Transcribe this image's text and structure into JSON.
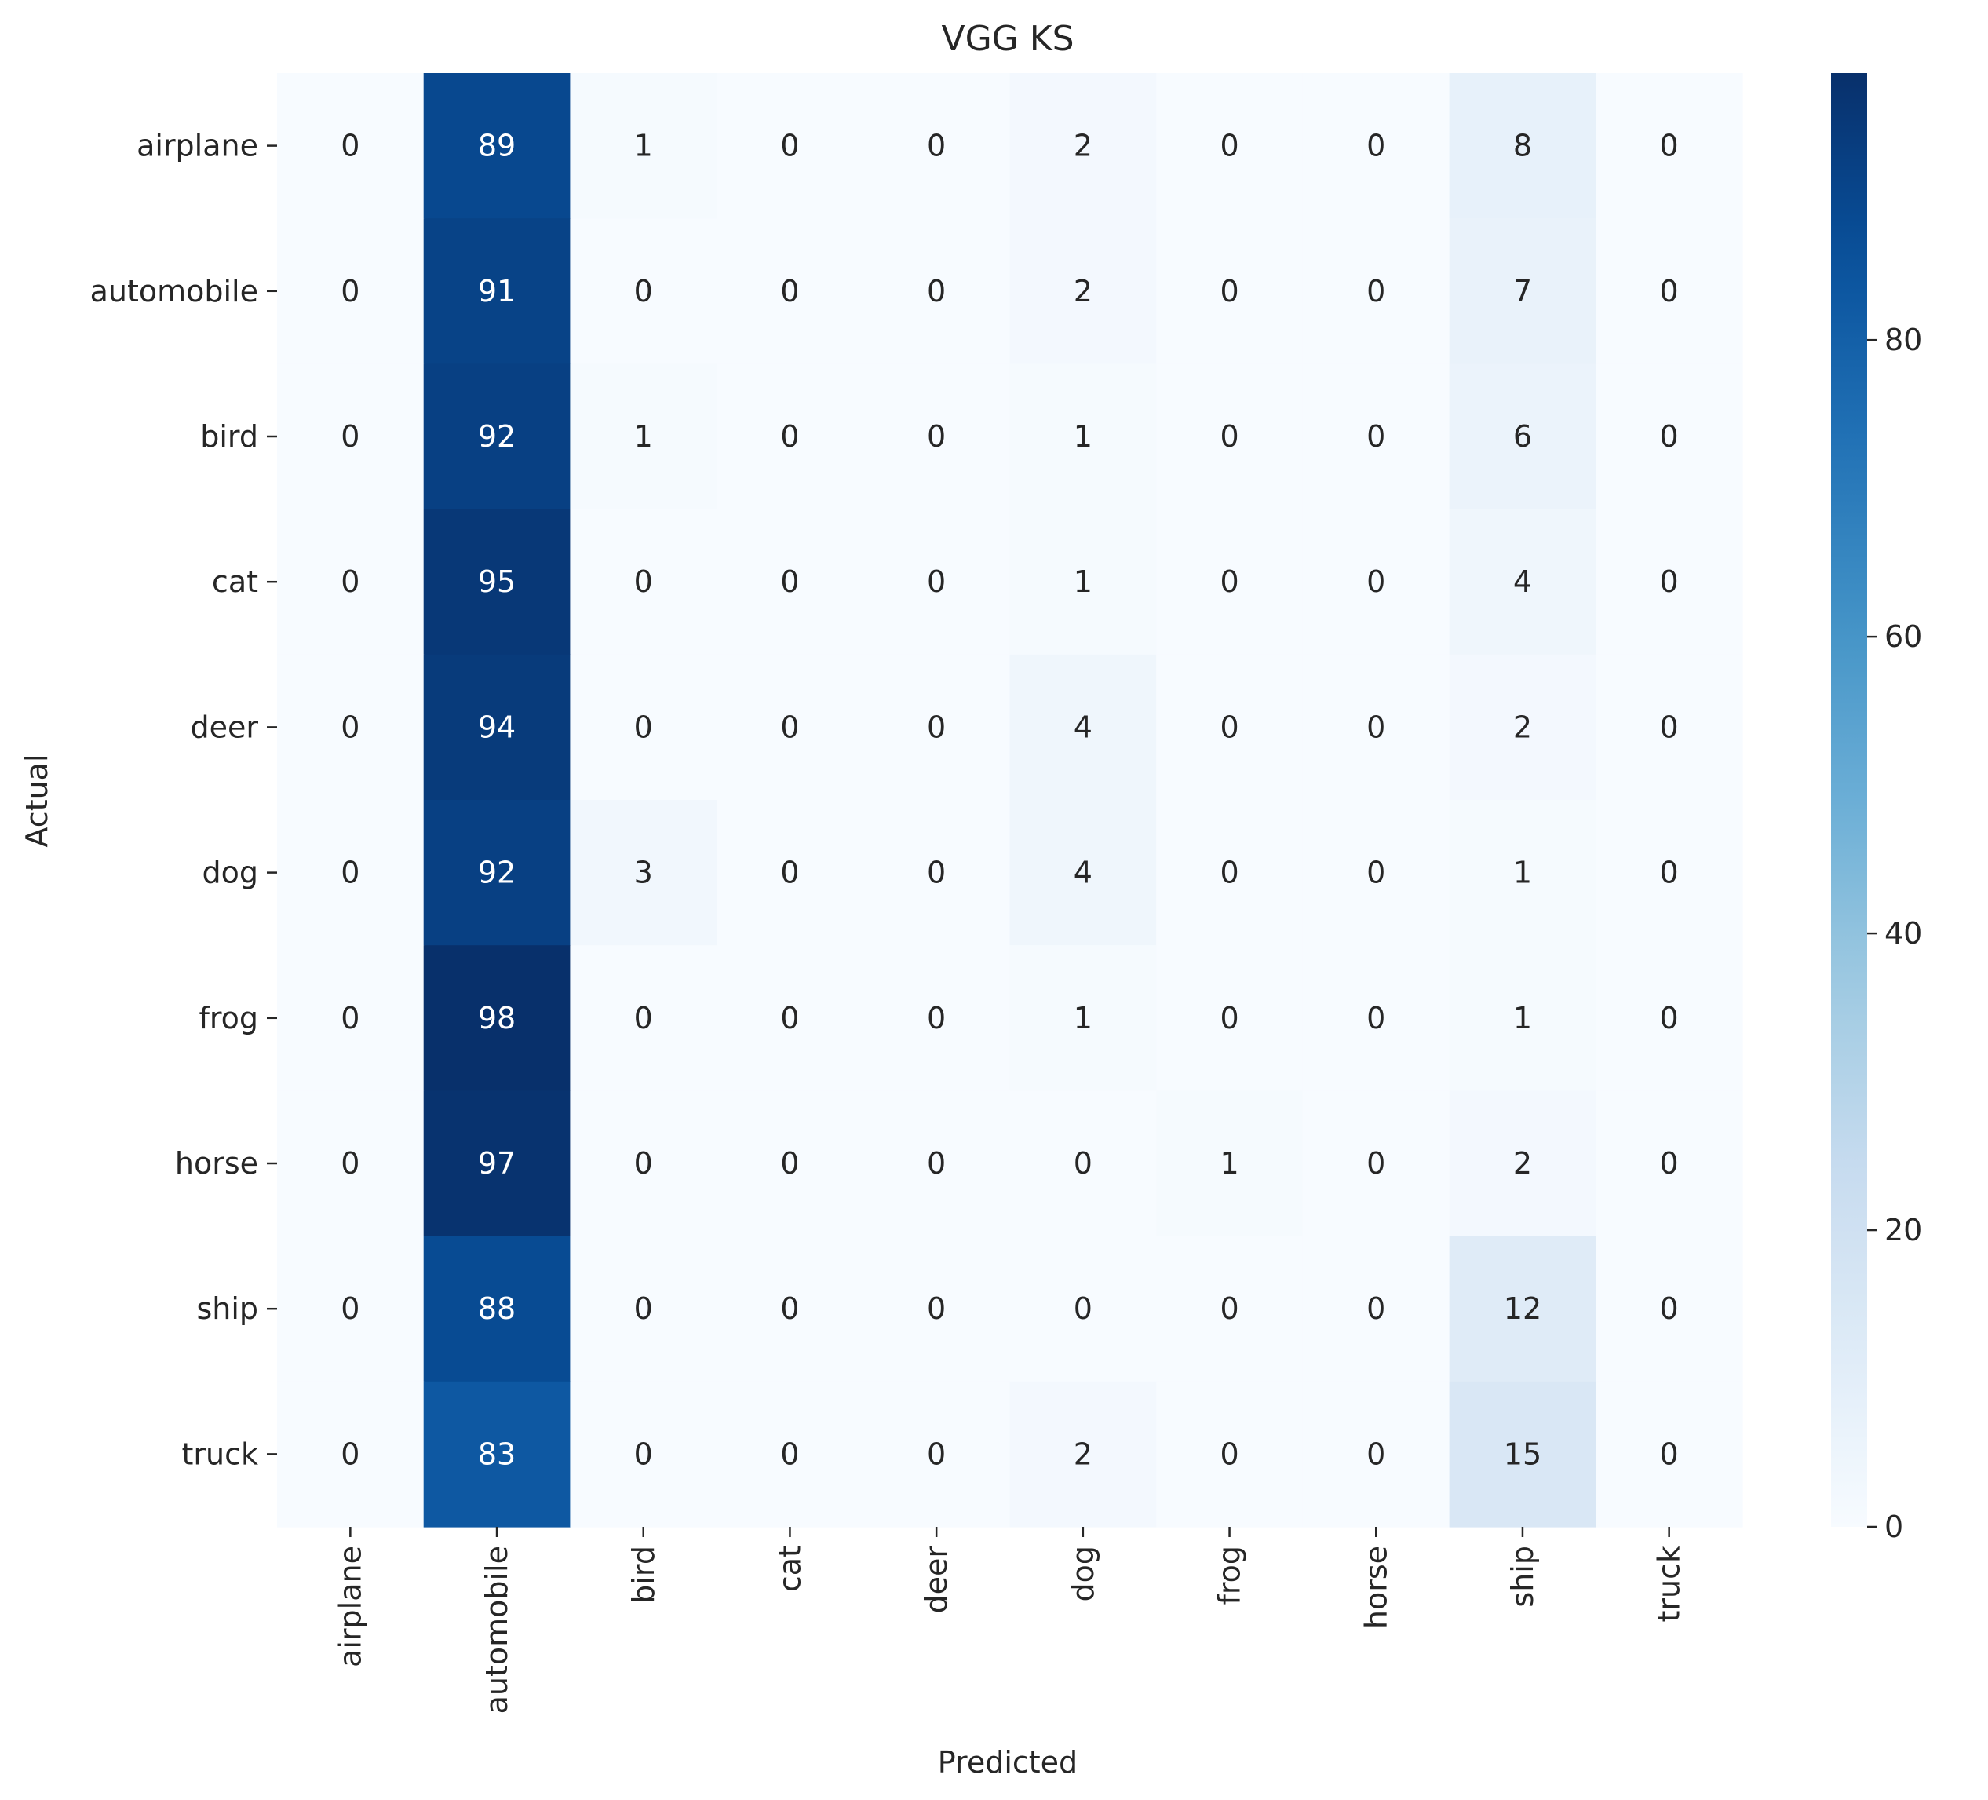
{
  "chart_data": {
    "type": "heatmap",
    "title": "VGG KS",
    "xlabel": "Predicted",
    "ylabel": "Actual",
    "x_categories": [
      "airplane",
      "automobile",
      "bird",
      "cat",
      "deer",
      "dog",
      "frog",
      "horse",
      "ship",
      "truck"
    ],
    "y_categories": [
      "airplane",
      "automobile",
      "bird",
      "cat",
      "deer",
      "dog",
      "frog",
      "horse",
      "ship",
      "truck"
    ],
    "values": [
      [
        0,
        89,
        1,
        0,
        0,
        2,
        0,
        0,
        8,
        0
      ],
      [
        0,
        91,
        0,
        0,
        0,
        2,
        0,
        0,
        7,
        0
      ],
      [
        0,
        92,
        1,
        0,
        0,
        1,
        0,
        0,
        6,
        0
      ],
      [
        0,
        95,
        0,
        0,
        0,
        1,
        0,
        0,
        4,
        0
      ],
      [
        0,
        94,
        0,
        0,
        0,
        4,
        0,
        0,
        2,
        0
      ],
      [
        0,
        92,
        3,
        0,
        0,
        4,
        0,
        0,
        1,
        0
      ],
      [
        0,
        98,
        0,
        0,
        0,
        1,
        0,
        0,
        1,
        0
      ],
      [
        0,
        97,
        0,
        0,
        0,
        0,
        1,
        0,
        2,
        0
      ],
      [
        0,
        88,
        0,
        0,
        0,
        0,
        0,
        0,
        12,
        0
      ],
      [
        0,
        83,
        0,
        0,
        0,
        2,
        0,
        0,
        15,
        0
      ]
    ],
    "colorbar": {
      "colormap": "Blues",
      "range": [
        0,
        98
      ],
      "ticks": [
        0,
        20,
        40,
        60,
        80
      ]
    }
  }
}
